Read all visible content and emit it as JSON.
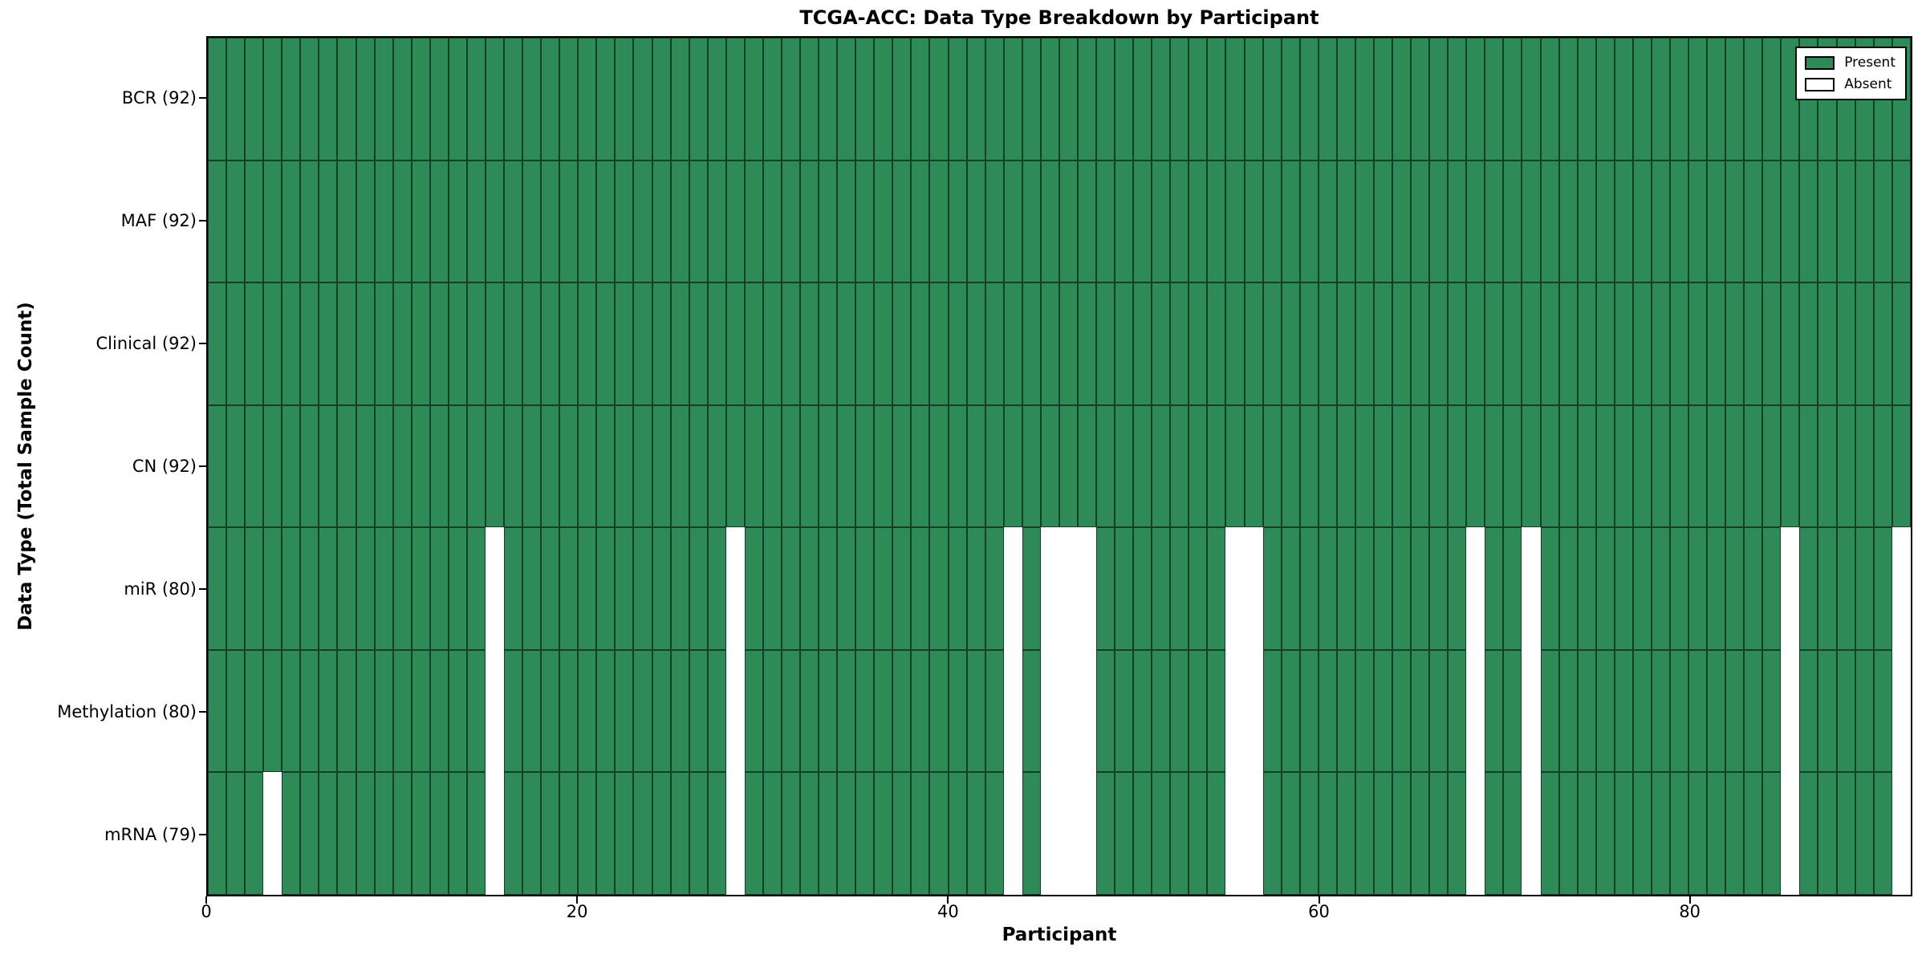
{
  "chart_data": {
    "type": "heatmap",
    "title": "TCGA-ACC: Data Type Breakdown by Participant",
    "xlabel": "Participant",
    "ylabel": "Data Type (Total Sample Count)",
    "n_participants": 92,
    "x_ticks": [
      0,
      20,
      40,
      60,
      80
    ],
    "grid": "off",
    "legend_position": "upper right",
    "rows": [
      {
        "label": "BCR (92)",
        "data_type": "BCR",
        "present_count": 92,
        "absent_participants": []
      },
      {
        "label": "MAF (92)",
        "data_type": "MAF",
        "present_count": 92,
        "absent_participants": []
      },
      {
        "label": "Clinical (92)",
        "data_type": "Clinical",
        "present_count": 92,
        "absent_participants": []
      },
      {
        "label": "CN (92)",
        "data_type": "CN",
        "present_count": 92,
        "absent_participants": []
      },
      {
        "label": "miR (80)",
        "data_type": "miR",
        "present_count": 80,
        "absent_participants": [
          15,
          28,
          43,
          45,
          46,
          47,
          55,
          56,
          68,
          71,
          85,
          91
        ]
      },
      {
        "label": "Methylation (80)",
        "data_type": "Methylation",
        "present_count": 80,
        "absent_participants": [
          15,
          28,
          43,
          45,
          46,
          47,
          55,
          56,
          68,
          71,
          85,
          91
        ]
      },
      {
        "label": "mRNA (79)",
        "data_type": "mRNA",
        "present_count": 79,
        "absent_participants": [
          3,
          15,
          28,
          43,
          45,
          46,
          47,
          55,
          56,
          68,
          71,
          85,
          91
        ]
      }
    ],
    "legend": [
      {
        "label": "Present",
        "color": "#2e8b57"
      },
      {
        "label": "Absent",
        "color": "#ffffff"
      }
    ],
    "colors": {
      "present": "#2e8b57",
      "absent": "#ffffff",
      "edge": "#000000",
      "frame": "#000000",
      "background": "#ffffff"
    }
  }
}
